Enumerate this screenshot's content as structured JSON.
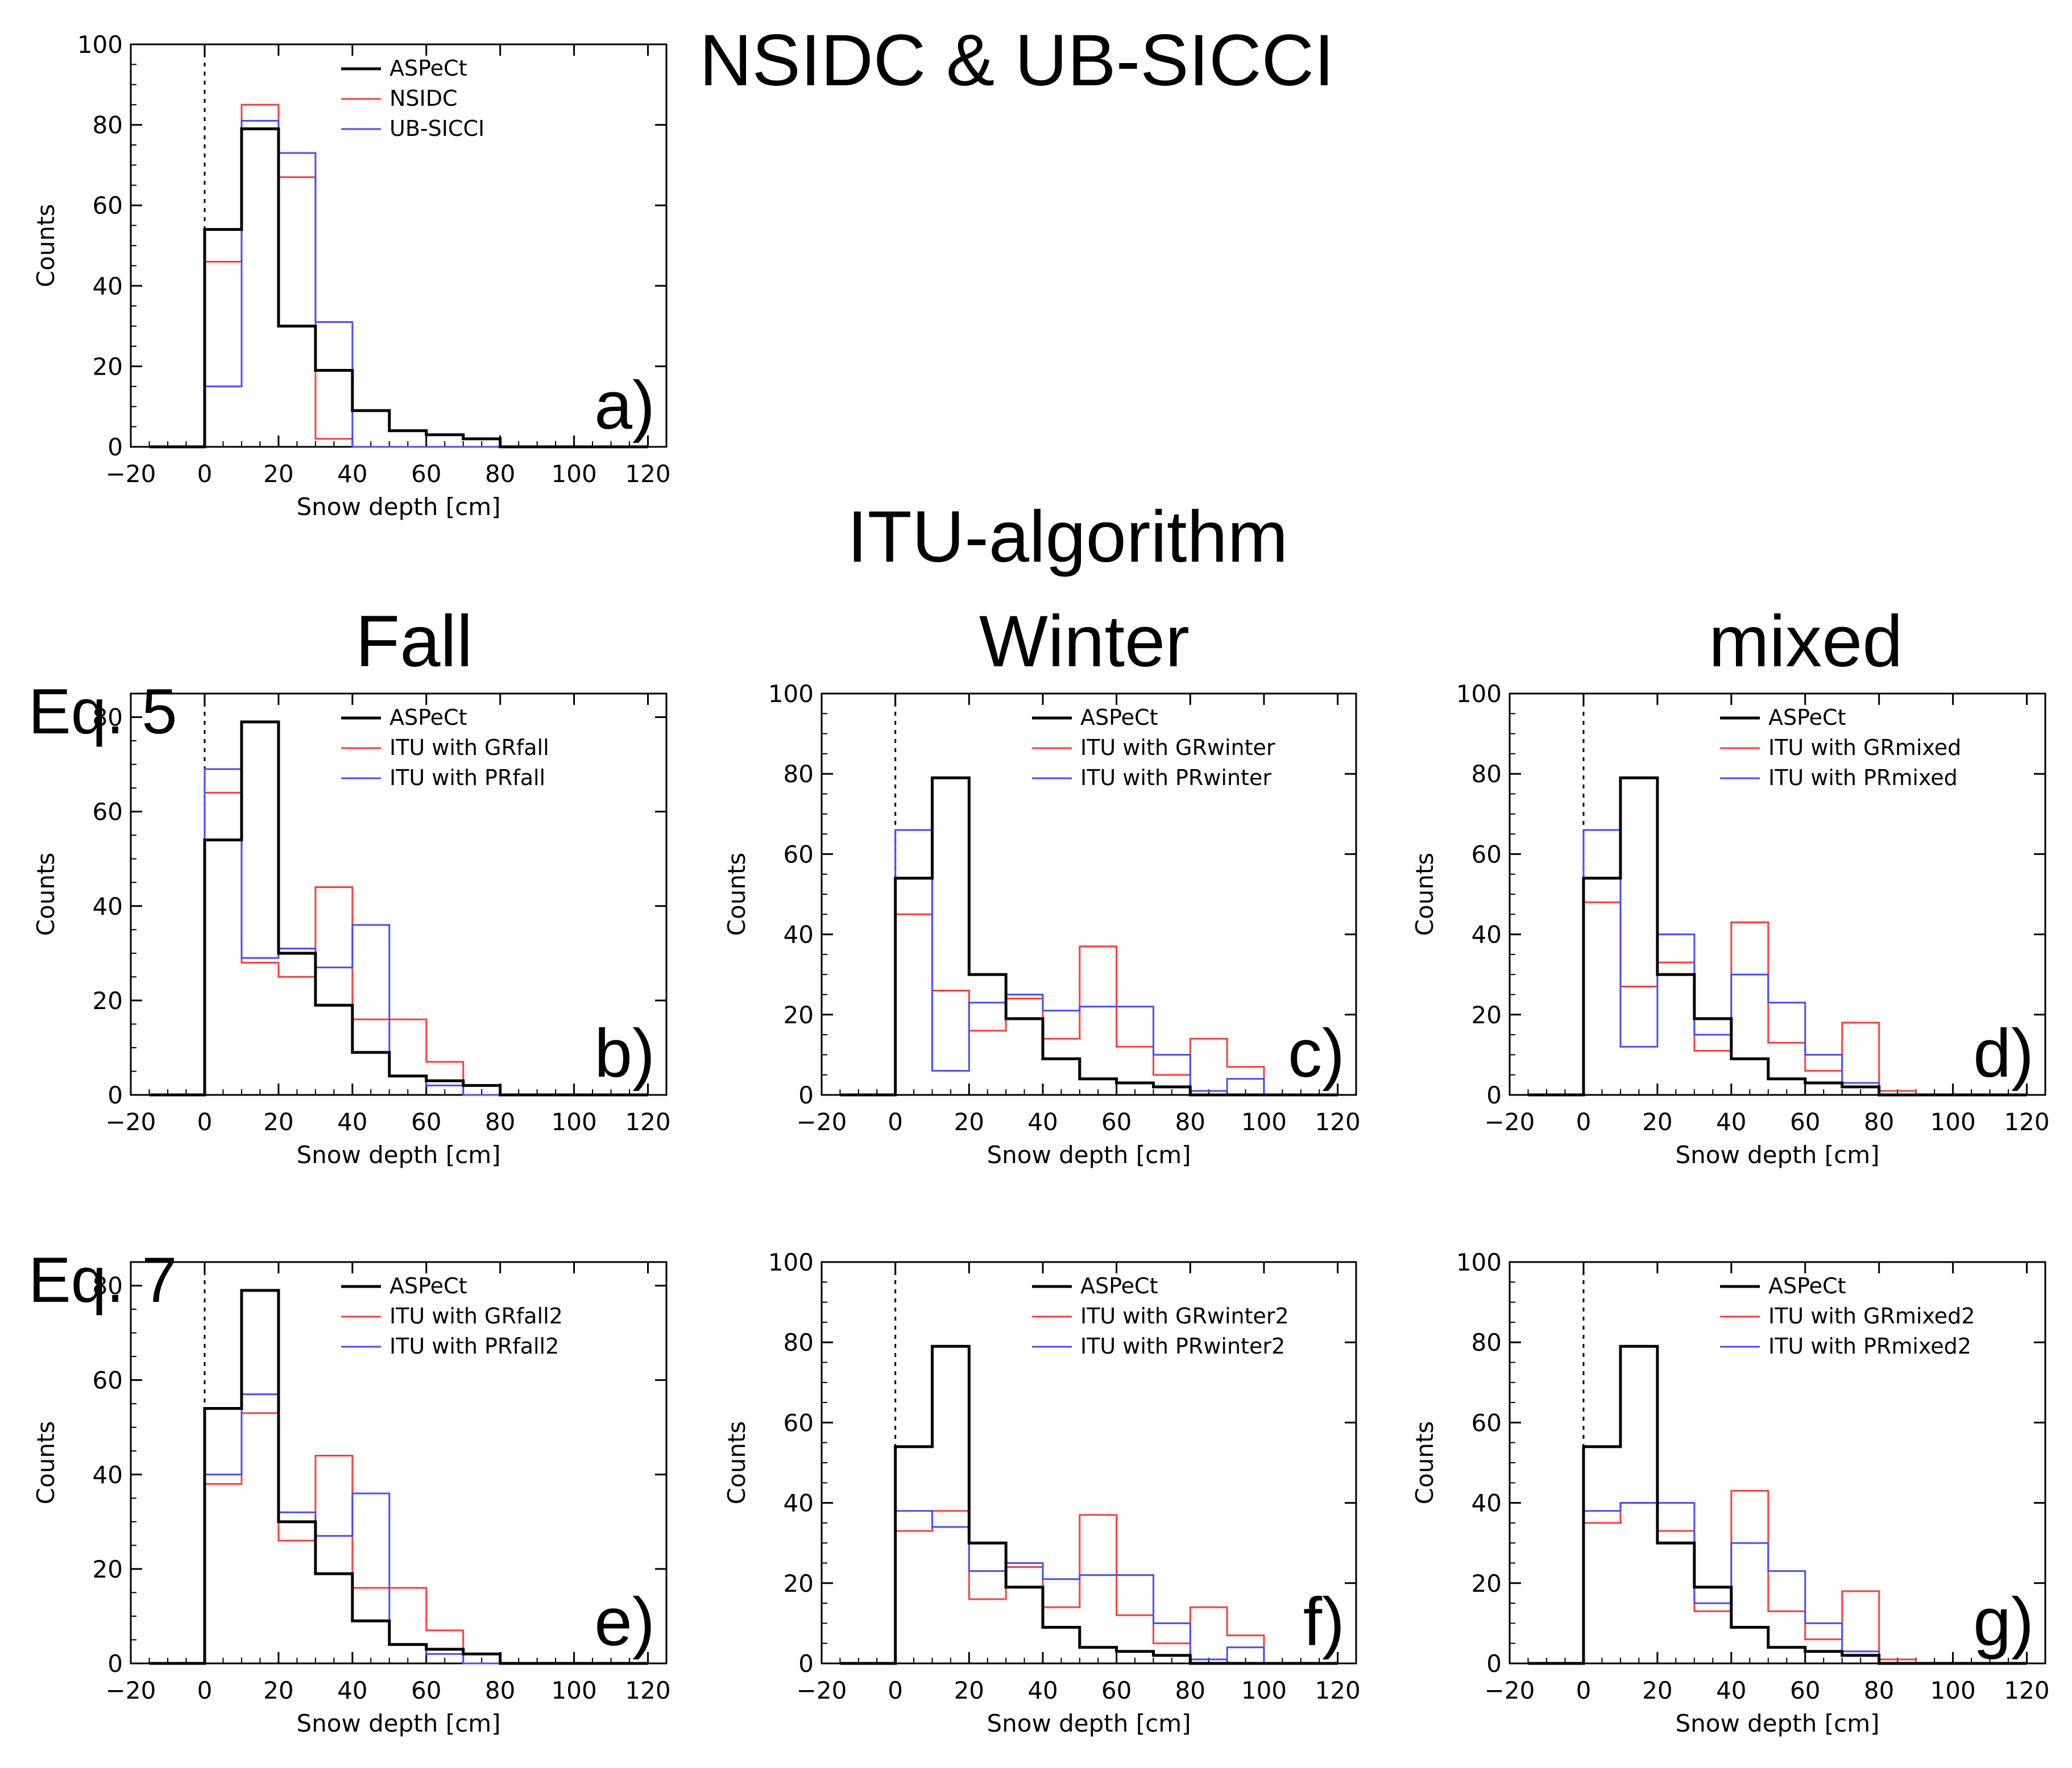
{
  "titles": {
    "top": "NSIDC & UB-SICCI",
    "itu": "ITU-algorithm",
    "col_fall": "Fall",
    "col_winter": "Winter",
    "col_mixed": "mixed",
    "row_eq5": "Eq. 5",
    "row_eq7": "Eq. 7"
  },
  "colors": {
    "aspect": "#000000",
    "red": "#ff3b3b",
    "blue": "#4a4aff"
  },
  "chart_data": [
    {
      "id": "a",
      "type": "histogram-step",
      "panel_label": "a)",
      "xlabel": "Snow depth [cm]",
      "ylabel": "Counts",
      "xlim": [
        -20,
        125
      ],
      "ylim": [
        0,
        100
      ],
      "xticks": [
        -20,
        0,
        20,
        40,
        60,
        80,
        100,
        120
      ],
      "yticks": [
        0,
        20,
        40,
        60,
        80,
        100
      ],
      "bin_edges": [
        0,
        10,
        20,
        30,
        40,
        50,
        60,
        70,
        80,
        90,
        100,
        110,
        120
      ],
      "series": [
        {
          "name": "ASPeCt",
          "color": "#000000",
          "width": 5,
          "values": [
            54,
            79,
            30,
            19,
            9,
            4,
            3,
            2,
            0,
            0,
            0,
            0
          ]
        },
        {
          "name": "NSIDC",
          "color": "#ff3b3b",
          "width": 3,
          "values": [
            46,
            85,
            67,
            2,
            0,
            0,
            0,
            0,
            0,
            0,
            0,
            0
          ]
        },
        {
          "name": "UB-SICCI",
          "color": "#4a4aff",
          "width": 3,
          "values": [
            15,
            81,
            73,
            31,
            0,
            0,
            0,
            0,
            0,
            0,
            0,
            0
          ]
        }
      ]
    },
    {
      "id": "b",
      "type": "histogram-step",
      "panel_label": "b)",
      "xlabel": "Snow depth [cm]",
      "ylabel": "Counts",
      "xlim": [
        -20,
        125
      ],
      "ylim": [
        0,
        85
      ],
      "xticks": [
        -20,
        0,
        20,
        40,
        60,
        80,
        100,
        120
      ],
      "yticks": [
        0,
        20,
        40,
        60,
        80
      ],
      "bin_edges": [
        0,
        10,
        20,
        30,
        40,
        50,
        60,
        70,
        80,
        90,
        100,
        110,
        120
      ],
      "series": [
        {
          "name": "ASPeCt",
          "color": "#000000",
          "width": 5,
          "values": [
            54,
            79,
            30,
            19,
            9,
            4,
            3,
            2,
            0,
            0,
            0,
            0
          ]
        },
        {
          "name": "ITU with GRfall",
          "color": "#ff3b3b",
          "width": 3,
          "values": [
            64,
            28,
            25,
            44,
            16,
            16,
            7,
            0,
            0,
            0,
            0,
            0
          ]
        },
        {
          "name": "ITU with PRfall",
          "color": "#4a4aff",
          "width": 3,
          "values": [
            69,
            29,
            31,
            27,
            36,
            4,
            2,
            0,
            0,
            0,
            0,
            0
          ]
        }
      ]
    },
    {
      "id": "c",
      "type": "histogram-step",
      "panel_label": "c)",
      "xlabel": "Snow depth [cm]",
      "ylabel": "Counts",
      "xlim": [
        -20,
        125
      ],
      "ylim": [
        0,
        100
      ],
      "xticks": [
        -20,
        0,
        20,
        40,
        60,
        80,
        100,
        120
      ],
      "yticks": [
        0,
        20,
        40,
        60,
        80,
        100
      ],
      "bin_edges": [
        0,
        10,
        20,
        30,
        40,
        50,
        60,
        70,
        80,
        90,
        100,
        110,
        120
      ],
      "series": [
        {
          "name": "ASPeCt",
          "color": "#000000",
          "width": 5,
          "values": [
            54,
            79,
            30,
            19,
            9,
            4,
            3,
            2,
            0,
            0,
            0,
            0
          ]
        },
        {
          "name": "ITU with GRwinter",
          "color": "#ff3b3b",
          "width": 3,
          "values": [
            45,
            26,
            16,
            24,
            14,
            37,
            12,
            5,
            14,
            7,
            0,
            0
          ]
        },
        {
          "name": "ITU with PRwinter",
          "color": "#4a4aff",
          "width": 3,
          "values": [
            66,
            6,
            23,
            25,
            21,
            22,
            22,
            10,
            1,
            4,
            0,
            0
          ]
        }
      ]
    },
    {
      "id": "d",
      "type": "histogram-step",
      "panel_label": "d)",
      "xlabel": "Snow depth [cm]",
      "ylabel": "Counts",
      "xlim": [
        -20,
        125
      ],
      "ylim": [
        0,
        100
      ],
      "xticks": [
        -20,
        0,
        20,
        40,
        60,
        80,
        100,
        120
      ],
      "yticks": [
        0,
        20,
        40,
        60,
        80,
        100
      ],
      "bin_edges": [
        0,
        10,
        20,
        30,
        40,
        50,
        60,
        70,
        80,
        90,
        100,
        110,
        120
      ],
      "series": [
        {
          "name": "ASPeCt",
          "color": "#000000",
          "width": 5,
          "values": [
            54,
            79,
            30,
            19,
            9,
            4,
            3,
            2,
            0,
            0,
            0,
            0
          ]
        },
        {
          "name": "ITU with GRmixed",
          "color": "#ff3b3b",
          "width": 3,
          "values": [
            48,
            27,
            33,
            11,
            43,
            13,
            6,
            18,
            1,
            0,
            0,
            0
          ]
        },
        {
          "name": "ITU with PRmixed",
          "color": "#4a4aff",
          "width": 3,
          "values": [
            66,
            12,
            40,
            15,
            30,
            23,
            10,
            3,
            0,
            0,
            0,
            0
          ]
        }
      ]
    },
    {
      "id": "e",
      "type": "histogram-step",
      "panel_label": "e)",
      "xlabel": "Snow depth [cm]",
      "ylabel": "Counts",
      "xlim": [
        -20,
        125
      ],
      "ylim": [
        0,
        85
      ],
      "xticks": [
        -20,
        0,
        20,
        40,
        60,
        80,
        100,
        120
      ],
      "yticks": [
        0,
        20,
        40,
        60,
        80
      ],
      "bin_edges": [
        0,
        10,
        20,
        30,
        40,
        50,
        60,
        70,
        80,
        90,
        100,
        110,
        120
      ],
      "series": [
        {
          "name": "ASPeCt",
          "color": "#000000",
          "width": 5,
          "values": [
            54,
            79,
            30,
            19,
            9,
            4,
            3,
            2,
            0,
            0,
            0,
            0
          ]
        },
        {
          "name": "ITU with GRfall2",
          "color": "#ff3b3b",
          "width": 3,
          "values": [
            38,
            53,
            26,
            44,
            16,
            16,
            7,
            0,
            0,
            0,
            0,
            0
          ]
        },
        {
          "name": "ITU with PRfall2",
          "color": "#4a4aff",
          "width": 3,
          "values": [
            40,
            57,
            32,
            27,
            36,
            4,
            2,
            0,
            0,
            0,
            0,
            0
          ]
        }
      ]
    },
    {
      "id": "f",
      "type": "histogram-step",
      "panel_label": "f)",
      "xlabel": "Snow depth [cm]",
      "ylabel": "Counts",
      "xlim": [
        -20,
        125
      ],
      "ylim": [
        0,
        100
      ],
      "xticks": [
        -20,
        0,
        20,
        40,
        60,
        80,
        100,
        120
      ],
      "yticks": [
        0,
        20,
        40,
        60,
        80,
        100
      ],
      "bin_edges": [
        0,
        10,
        20,
        30,
        40,
        50,
        60,
        70,
        80,
        90,
        100,
        110,
        120
      ],
      "series": [
        {
          "name": "ASPeCt",
          "color": "#000000",
          "width": 5,
          "values": [
            54,
            79,
            30,
            19,
            9,
            4,
            3,
            2,
            0,
            0,
            0,
            0
          ]
        },
        {
          "name": "ITU with GRwinter2",
          "color": "#ff3b3b",
          "width": 3,
          "values": [
            33,
            38,
            16,
            24,
            14,
            37,
            12,
            5,
            14,
            7,
            0,
            0
          ]
        },
        {
          "name": "ITU with PRwinter2",
          "color": "#4a4aff",
          "width": 3,
          "values": [
            38,
            34,
            23,
            25,
            21,
            22,
            22,
            10,
            1,
            4,
            0,
            0
          ]
        }
      ]
    },
    {
      "id": "g",
      "type": "histogram-step",
      "panel_label": "g)",
      "xlabel": "Snow depth [cm]",
      "ylabel": "Counts",
      "xlim": [
        -20,
        125
      ],
      "ylim": [
        0,
        100
      ],
      "xticks": [
        -20,
        0,
        20,
        40,
        60,
        80,
        100,
        120
      ],
      "yticks": [
        0,
        20,
        40,
        60,
        80,
        100
      ],
      "bin_edges": [
        0,
        10,
        20,
        30,
        40,
        50,
        60,
        70,
        80,
        90,
        100,
        110,
        120
      ],
      "series": [
        {
          "name": "ASPeCt",
          "color": "#000000",
          "width": 5,
          "values": [
            54,
            79,
            30,
            19,
            9,
            4,
            3,
            2,
            0,
            0,
            0,
            0
          ]
        },
        {
          "name": "ITU with GRmixed2",
          "color": "#ff3b3b",
          "width": 3,
          "values": [
            35,
            40,
            33,
            13,
            43,
            13,
            6,
            18,
            1,
            0,
            0,
            0
          ]
        },
        {
          "name": "ITU with PRmixed2",
          "color": "#4a4aff",
          "width": 3,
          "values": [
            38,
            40,
            40,
            15,
            30,
            23,
            10,
            3,
            0,
            0,
            0,
            0
          ]
        }
      ]
    }
  ]
}
